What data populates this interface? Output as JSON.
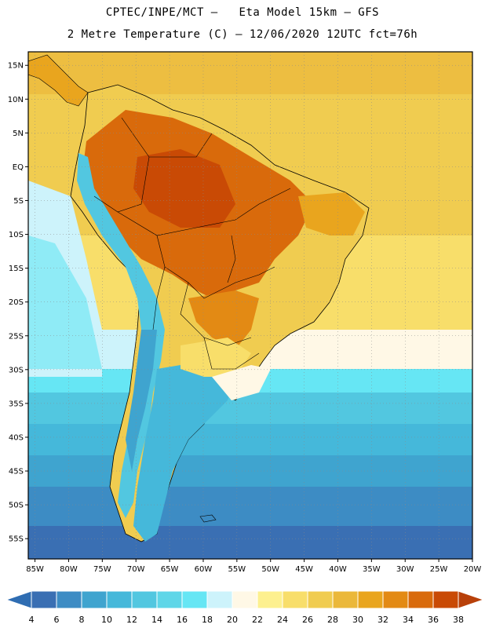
{
  "header": {
    "title_line1": "CPTEC/INPE/MCT –   Eta Model 15km – GFS",
    "title_line2": "2 Metre Temperature (C) – 12/06/2020 12UTC fct=76h"
  },
  "map": {
    "lat_labels": [
      "15N",
      "10N",
      "5N",
      "EQ",
      "5S",
      "10S",
      "15S",
      "20S",
      "25S",
      "30S",
      "35S",
      "40S",
      "45S",
      "50S",
      "55S"
    ],
    "lat_values": [
      15,
      10,
      5,
      0,
      -5,
      -10,
      -15,
      -20,
      -25,
      -30,
      -35,
      -40,
      -45,
      -50,
      -55
    ],
    "lon_labels": [
      "85W",
      "80W",
      "75W",
      "70W",
      "65W",
      "60W",
      "55W",
      "50W",
      "45W",
      "40W",
      "35W",
      "30W",
      "25W",
      "20W"
    ],
    "lon_values": [
      -85,
      -80,
      -75,
      -70,
      -65,
      -60,
      -55,
      -50,
      -45,
      -40,
      -35,
      -30,
      -25,
      -20
    ],
    "extent": {
      "lon_min": -86,
      "lon_max": -20,
      "lat_min": -58,
      "lat_max": 17
    }
  },
  "colorbar": {
    "labels": [
      "4",
      "6",
      "8",
      "10",
      "12",
      "14",
      "16",
      "18",
      "20",
      "22",
      "24",
      "26",
      "28",
      "30",
      "32",
      "34",
      "36",
      "38"
    ],
    "colors": [
      "#3a6fb3",
      "#3d8cc4",
      "#3fa4cf",
      "#45b8da",
      "#52c7e0",
      "#5fd6e8",
      "#66e6f4",
      "#cdf3fb",
      "#fff8e6",
      "#fdf08f",
      "#f8de6a",
      "#f0cc50",
      "#ebb83a",
      "#e9a51e",
      "#e38a14",
      "#d96a0b",
      "#c94a05"
    ],
    "under_color": "#2f6db2",
    "over_color": "#b8400a"
  }
}
